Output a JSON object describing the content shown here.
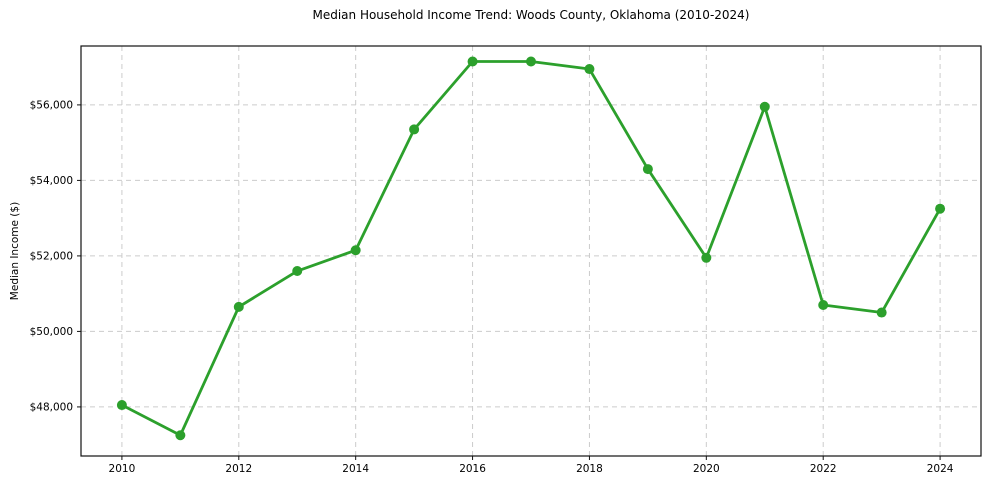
{
  "page": {
    "background": "#ffffff"
  },
  "chart_data": {
    "type": "line",
    "title": "Median Household Income Trend: Woods County, Oklahoma (2010-2024)",
    "xlabel": "",
    "ylabel": "Median Income ($)",
    "x": [
      2010,
      2011,
      2012,
      2013,
      2014,
      2015,
      2016,
      2017,
      2018,
      2019,
      2020,
      2021,
      2022,
      2023,
      2024
    ],
    "values": [
      48050,
      47250,
      50650,
      51600,
      52150,
      55350,
      57150,
      57150,
      56950,
      54300,
      51950,
      55950,
      50700,
      50500,
      53250
    ],
    "xlim": [
      2009.3,
      2024.7
    ],
    "ylim": [
      46700,
      57560
    ],
    "xticks": [
      {
        "value": 2010,
        "label": "2010"
      },
      {
        "value": 2012,
        "label": "2012"
      },
      {
        "value": 2014,
        "label": "2014"
      },
      {
        "value": 2016,
        "label": "2016"
      },
      {
        "value": 2018,
        "label": "2018"
      },
      {
        "value": 2020,
        "label": "2020"
      },
      {
        "value": 2022,
        "label": "2022"
      },
      {
        "value": 2024,
        "label": "2024"
      }
    ],
    "yticks": [
      {
        "value": 48000,
        "label": "$48,000"
      },
      {
        "value": 50000,
        "label": "$50,000"
      },
      {
        "value": 52000,
        "label": "$52,000"
      },
      {
        "value": 54000,
        "label": "$54,000"
      },
      {
        "value": 56000,
        "label": "$56,000"
      }
    ],
    "grid": true,
    "grid_style": "dashed",
    "grid_color": "#cccccc",
    "line_color": "#2ca02c",
    "marker": "circle",
    "marker_radius": 5,
    "legend": "none",
    "plot_background": "#ffffff"
  }
}
